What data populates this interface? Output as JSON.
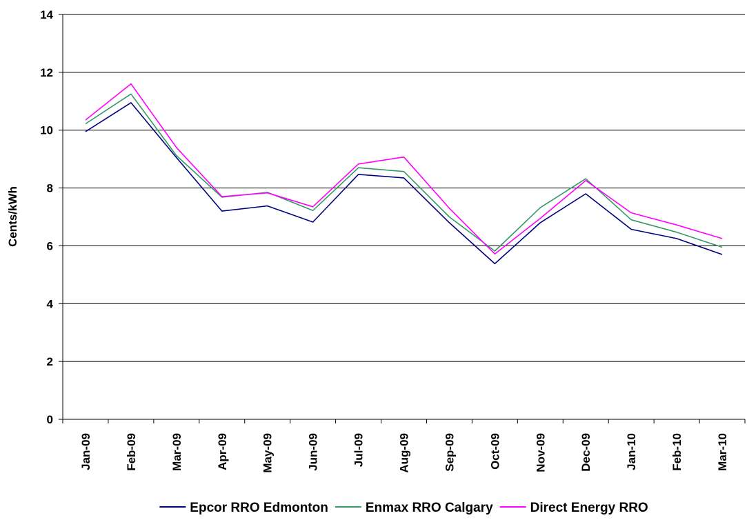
{
  "chart_data": {
    "type": "line",
    "title": "",
    "xlabel": "",
    "ylabel": "Cents/kWh",
    "categories": [
      "Jan-09",
      "Feb-09",
      "Mar-09",
      "Apr-09",
      "May-09",
      "Jun-09",
      "Jul-09",
      "Aug-09",
      "Sep-09",
      "Oct-09",
      "Nov-09",
      "Dec-09",
      "Jan-10",
      "Feb-10",
      "Mar-10"
    ],
    "ylim": [
      0,
      14
    ],
    "yticks": [
      "0",
      "2",
      "4",
      "6",
      "8",
      "10",
      "12",
      "14"
    ],
    "grid": true,
    "legend_position": "bottom",
    "series": [
      {
        "name": "Epcor RRO Edmonton",
        "color": "#000080",
        "values": [
          9.95,
          10.95,
          9.05,
          7.2,
          7.38,
          6.82,
          8.47,
          8.35,
          6.8,
          5.38,
          6.8,
          7.8,
          6.57,
          6.25,
          5.7
        ]
      },
      {
        "name": "Enmax RRO Calgary",
        "color": "#339966",
        "values": [
          10.22,
          11.25,
          9.12,
          7.68,
          7.85,
          7.22,
          8.7,
          8.57,
          7.0,
          5.82,
          7.32,
          8.32,
          6.9,
          6.47,
          5.95
        ]
      },
      {
        "name": "Direct Energy RRO",
        "color": "#ff00ff",
        "values": [
          10.35,
          11.6,
          9.4,
          7.7,
          7.83,
          7.35,
          8.83,
          9.07,
          7.3,
          5.72,
          6.95,
          8.26,
          7.14,
          6.72,
          6.25
        ]
      }
    ]
  }
}
